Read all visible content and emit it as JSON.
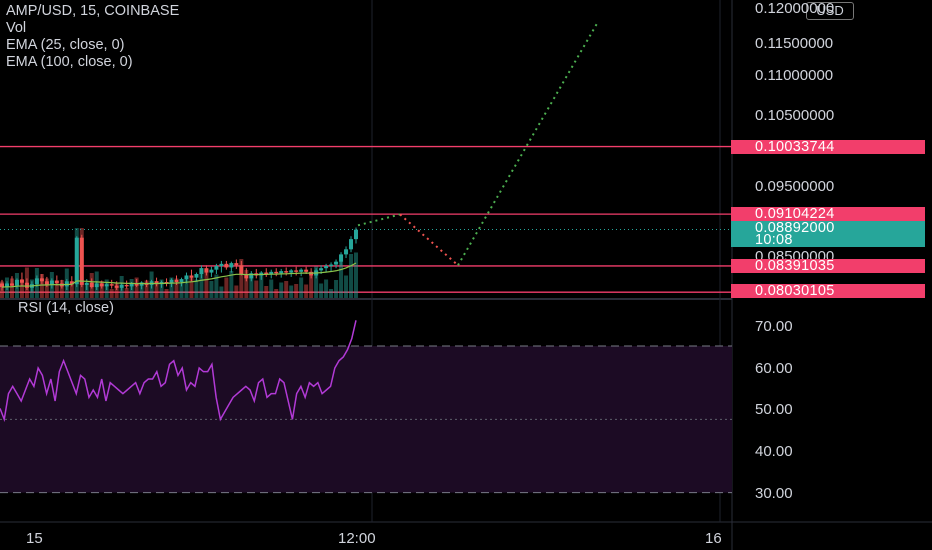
{
  "header": {
    "symbol_line": "AMP/USD, 15, COINBASE",
    "vol_label": "Vol",
    "ema25_label": "EMA (25, close, 0)",
    "ema100_label": "EMA (100, close, 0)",
    "currency_badge": "USD"
  },
  "rsi_panel": {
    "label": "RSI (14, close)",
    "bands": [
      70,
      30
    ],
    "midline": 50
  },
  "price_axis": {
    "ticks": [
      "0.11500000",
      "0.11000000",
      "0.10500000",
      "0.09500000",
      "0.08500000"
    ],
    "top_partial": "0.12000000"
  },
  "rsi_axis": {
    "ticks": [
      "70.00",
      "60.00",
      "50.00",
      "40.00",
      "30.00"
    ]
  },
  "time_axis": {
    "ticks": [
      "15",
      "12:00",
      "16"
    ]
  },
  "price_levels": [
    {
      "price": "0.10033744",
      "value": 0.10033744
    },
    {
      "price": "0.09104224",
      "value": 0.09104224
    },
    {
      "price": "0.08391035",
      "value": 0.08391035
    },
    {
      "price": "0.08030105",
      "value": 0.08030105
    }
  ],
  "current_price": {
    "price": "0.08892000",
    "countdown": "10:08",
    "value": 0.08892
  },
  "colors": {
    "level_line": "#f23e6b",
    "up": "#26a69a",
    "down": "#ef5350",
    "rsi_line": "#b23ad6",
    "rsi_fill": "#1c0b24",
    "projection_up": "#4caf50",
    "projection_down": "#ef5350"
  },
  "chart_data": {
    "type": "line",
    "title": "AMP/USD, 15, COINBASE",
    "price_ylim": [
      0.0795,
      0.1205
    ],
    "rsi": {
      "ylim": [
        22,
        82
      ],
      "values": [
        53,
        50,
        57,
        59,
        57,
        55,
        58,
        61,
        59,
        64,
        62,
        57,
        61,
        55,
        63,
        66,
        63,
        60,
        57,
        62,
        61,
        56,
        58,
        56,
        61,
        55,
        60,
        59,
        58,
        57,
        58,
        59,
        60,
        57,
        60,
        61,
        61,
        63,
        59,
        60,
        65,
        66,
        62,
        64,
        58,
        60,
        59,
        64,
        63,
        63,
        65,
        56,
        50,
        52,
        54,
        56,
        57,
        58,
        59,
        58,
        55,
        60,
        61,
        56,
        57,
        57,
        61,
        60,
        55,
        50,
        57,
        59,
        56,
        60,
        59,
        60,
        57,
        58,
        59,
        64,
        66,
        67,
        69,
        72,
        77
      ]
    },
    "projection": {
      "segments": [
        {
          "from": 0.0895,
          "to": 0.091,
          "color": "up"
        },
        {
          "from": 0.091,
          "to": 0.084,
          "color": "down"
        },
        {
          "from": 0.084,
          "to": 0.1175,
          "color": "up"
        }
      ]
    },
    "candles": [
      [
        0.0815,
        0.082,
        0.0805,
        0.081
      ],
      [
        0.081,
        0.0818,
        0.0806,
        0.0815
      ],
      [
        0.0815,
        0.0825,
        0.081,
        0.0812
      ],
      [
        0.0812,
        0.0822,
        0.0808,
        0.082
      ],
      [
        0.082,
        0.083,
        0.0812,
        0.0816
      ],
      [
        0.0816,
        0.0822,
        0.0806,
        0.0809
      ],
      [
        0.0809,
        0.0818,
        0.0804,
        0.0814
      ],
      [
        0.0814,
        0.0826,
        0.081,
        0.0822
      ],
      [
        0.0822,
        0.0828,
        0.0814,
        0.0818
      ],
      [
        0.0818,
        0.0824,
        0.081,
        0.0813
      ],
      [
        0.0813,
        0.0822,
        0.0808,
        0.0819
      ],
      [
        0.0819,
        0.0826,
        0.0812,
        0.0815
      ],
      [
        0.0815,
        0.082,
        0.0808,
        0.0811
      ],
      [
        0.0811,
        0.0821,
        0.0806,
        0.0818
      ],
      [
        0.0818,
        0.0825,
        0.0811,
        0.0814
      ],
      [
        0.0814,
        0.088,
        0.081,
        0.0878
      ],
      [
        0.0878,
        0.0882,
        0.081,
        0.0813
      ],
      [
        0.0813,
        0.0821,
        0.0806,
        0.0816
      ],
      [
        0.0816,
        0.0822,
        0.0808,
        0.081
      ],
      [
        0.081,
        0.0818,
        0.0806,
        0.0815
      ],
      [
        0.0815,
        0.0819,
        0.0808,
        0.0811
      ],
      [
        0.0811,
        0.0817,
        0.0806,
        0.0814
      ],
      [
        0.0814,
        0.082,
        0.0808,
        0.0812
      ],
      [
        0.0812,
        0.0818,
        0.0806,
        0.0809
      ],
      [
        0.0809,
        0.0816,
        0.0805,
        0.0813
      ],
      [
        0.0813,
        0.0819,
        0.0808,
        0.0811
      ],
      [
        0.0811,
        0.0817,
        0.0806,
        0.0815
      ],
      [
        0.0815,
        0.0821,
        0.081,
        0.0812
      ],
      [
        0.0812,
        0.0818,
        0.0807,
        0.0816
      ],
      [
        0.0816,
        0.082,
        0.081,
        0.0813
      ],
      [
        0.0813,
        0.082,
        0.0808,
        0.0818
      ],
      [
        0.0818,
        0.0823,
        0.0811,
        0.0814
      ],
      [
        0.0814,
        0.0819,
        0.0809,
        0.0817
      ],
      [
        0.0817,
        0.0822,
        0.0811,
        0.0815
      ],
      [
        0.0815,
        0.0822,
        0.081,
        0.082
      ],
      [
        0.082,
        0.0826,
        0.0813,
        0.0817
      ],
      [
        0.0817,
        0.0823,
        0.0811,
        0.0821
      ],
      [
        0.0821,
        0.083,
        0.0815,
        0.0826
      ],
      [
        0.0826,
        0.0834,
        0.0818,
        0.0823
      ],
      [
        0.0823,
        0.083,
        0.0818,
        0.0828
      ],
      [
        0.0828,
        0.084,
        0.0822,
        0.0836
      ],
      [
        0.0836,
        0.084,
        0.0826,
        0.083
      ],
      [
        0.083,
        0.0838,
        0.0824,
        0.0834
      ],
      [
        0.0834,
        0.0842,
        0.0828,
        0.0839
      ],
      [
        0.0839,
        0.0846,
        0.083,
        0.0842
      ],
      [
        0.0842,
        0.0846,
        0.0834,
        0.0837
      ],
      [
        0.0837,
        0.0845,
        0.083,
        0.0843
      ],
      [
        0.0843,
        0.0848,
        0.0835,
        0.084
      ],
      [
        0.084,
        0.0846,
        0.0826,
        0.0828
      ],
      [
        0.0828,
        0.0836,
        0.0818,
        0.0822
      ],
      [
        0.0822,
        0.0832,
        0.0818,
        0.0829
      ],
      [
        0.0829,
        0.0835,
        0.0822,
        0.0826
      ],
      [
        0.0826,
        0.0832,
        0.082,
        0.083
      ],
      [
        0.083,
        0.0836,
        0.0824,
        0.0828
      ],
      [
        0.0828,
        0.0834,
        0.0822,
        0.0831
      ],
      [
        0.0831,
        0.0836,
        0.0825,
        0.0829
      ],
      [
        0.0829,
        0.0835,
        0.0823,
        0.0832
      ],
      [
        0.0832,
        0.0837,
        0.0826,
        0.083
      ],
      [
        0.083,
        0.0835,
        0.0824,
        0.0833
      ],
      [
        0.0833,
        0.0838,
        0.0826,
        0.0831
      ],
      [
        0.0831,
        0.0836,
        0.0825,
        0.0834
      ],
      [
        0.0834,
        0.0838,
        0.0828,
        0.0831
      ],
      [
        0.0831,
        0.0836,
        0.0822,
        0.0826
      ],
      [
        0.0826,
        0.0836,
        0.0822,
        0.0833
      ],
      [
        0.0833,
        0.084,
        0.0828,
        0.0836
      ],
      [
        0.0836,
        0.0842,
        0.083,
        0.0839
      ],
      [
        0.0839,
        0.0844,
        0.0832,
        0.0841
      ],
      [
        0.0841,
        0.0848,
        0.0836,
        0.0845
      ],
      [
        0.0845,
        0.0858,
        0.084,
        0.0855
      ],
      [
        0.0855,
        0.0866,
        0.085,
        0.0862
      ],
      [
        0.0862,
        0.088,
        0.0858,
        0.0876
      ],
      [
        0.0876,
        0.0892,
        0.087,
        0.0889
      ]
    ]
  }
}
